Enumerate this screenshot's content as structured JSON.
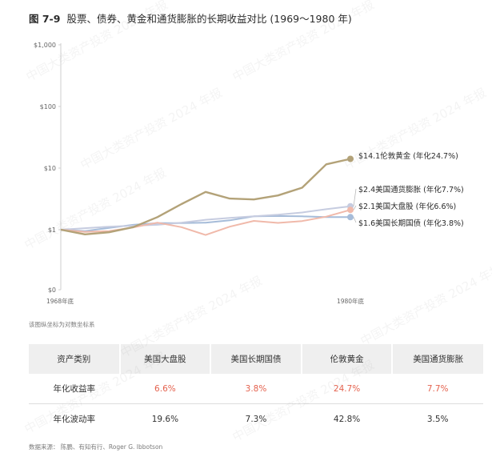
{
  "header": {
    "figure_no": "图 7-9",
    "title": "股票、债券、黄金和通货膨胀的长期收益对比 (1969～1980 年)"
  },
  "watermark_text": "中国大类资产投资 2024 年报",
  "chart_data": {
    "type": "line",
    "y_scale": "log",
    "ylim": [
      0,
      1000
    ],
    "y_ticks": [
      "$0",
      "$1",
      "$10",
      "$100",
      "$1,000"
    ],
    "x_tick_labels": [
      "1968年底",
      "1980年底"
    ],
    "x": [
      1968,
      1969,
      1970,
      1971,
      1972,
      1973,
      1974,
      1975,
      1976,
      1977,
      1978,
      1979,
      1980
    ],
    "grid": false,
    "series": [
      {
        "name": "伦敦黄金",
        "color": "#b3a278",
        "label": "$14.1伦敦黄金 (年化24.7%)",
        "values": [
          1.0,
          0.84,
          0.91,
          1.1,
          1.6,
          2.6,
          4.1,
          3.2,
          3.1,
          3.6,
          4.8,
          11.5,
          14.1
        ]
      },
      {
        "name": "美国通货膨胀",
        "color": "#c6cce0",
        "label": "$2.4美国通货膨胀 (年化7.7%)",
        "values": [
          1.0,
          1.06,
          1.12,
          1.16,
          1.2,
          1.3,
          1.45,
          1.55,
          1.65,
          1.75,
          1.9,
          2.15,
          2.4
        ]
      },
      {
        "name": "美国大盘股",
        "color": "#f0b9aa",
        "label": "$2.1美国大盘股 (年化6.6%)",
        "values": [
          1.0,
          0.92,
          0.95,
          1.09,
          1.3,
          1.1,
          0.82,
          1.12,
          1.39,
          1.29,
          1.38,
          1.63,
          2.1
        ]
      },
      {
        "name": "美国长期国债",
        "color": "#a6bcd9",
        "label": "$1.6美国长期国债 (年化3.8%)",
        "values": [
          1.0,
          0.95,
          1.07,
          1.2,
          1.28,
          1.28,
          1.3,
          1.42,
          1.65,
          1.67,
          1.65,
          1.6,
          1.6
        ]
      }
    ]
  },
  "note": "该图纵坐标为对数坐标系",
  "table": {
    "headers": [
      "资产类别",
      "美国大盘股",
      "美国长期国债",
      "伦敦黄金",
      "美国通货膨胀"
    ],
    "rows": [
      [
        "年化收益率",
        "6.6%",
        "3.8%",
        "24.7%",
        "7.7%"
      ],
      [
        "年化波动率",
        "19.6%",
        "7.3%",
        "42.8%",
        "3.5%"
      ]
    ]
  },
  "source": "数据来源： 陈鹏、有知有行、Roger G. Ibbotson"
}
